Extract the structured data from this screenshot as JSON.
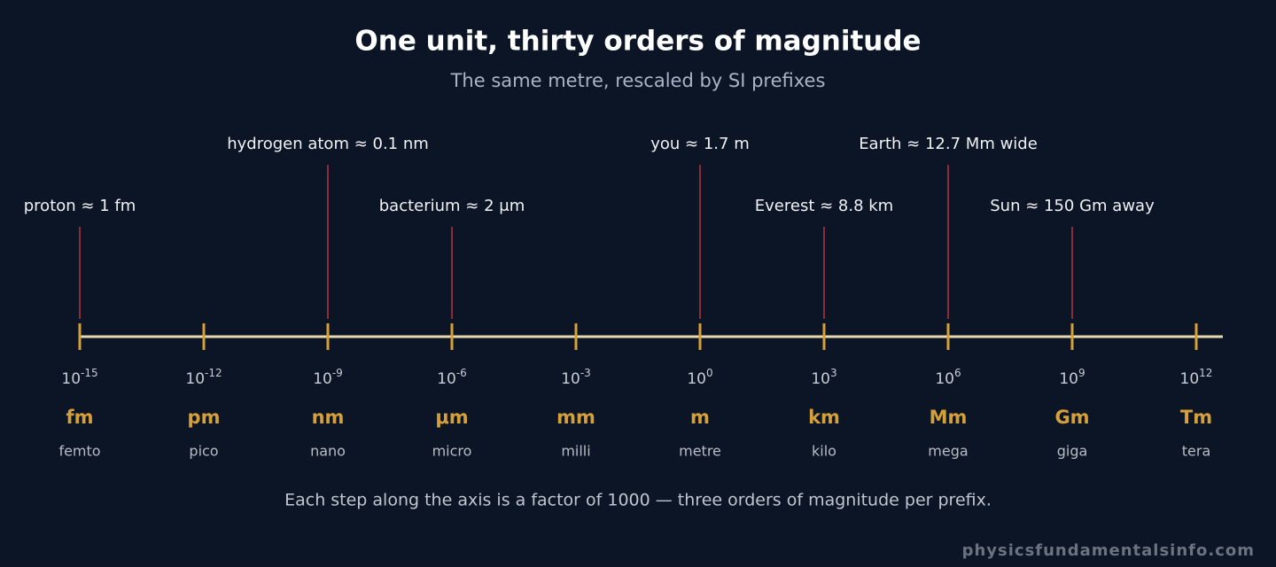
{
  "header": {
    "title": "One unit, thirty orders of magnitude",
    "subtitle": "The same metre, rescaled by SI prefixes"
  },
  "scale": [
    {
      "base": "10",
      "exponent": "-15",
      "symbol": "fm",
      "prefix": "femto"
    },
    {
      "base": "10",
      "exponent": "-12",
      "symbol": "pm",
      "prefix": "pico"
    },
    {
      "base": "10",
      "exponent": "-9",
      "symbol": "nm",
      "prefix": "nano"
    },
    {
      "base": "10",
      "exponent": "-6",
      "symbol": "μm",
      "prefix": "micro"
    },
    {
      "base": "10",
      "exponent": "-3",
      "symbol": "mm",
      "prefix": "milli"
    },
    {
      "base": "10",
      "exponent": "0",
      "symbol": "m",
      "prefix": "metre"
    },
    {
      "base": "10",
      "exponent": "3",
      "symbol": "km",
      "prefix": "kilo"
    },
    {
      "base": "10",
      "exponent": "6",
      "symbol": "Mm",
      "prefix": "mega"
    },
    {
      "base": "10",
      "exponent": "9",
      "symbol": "Gm",
      "prefix": "giga"
    },
    {
      "base": "10",
      "exponent": "12",
      "symbol": "Tm",
      "prefix": "tera"
    }
  ],
  "annotations": [
    {
      "label": "proton ≈ 1 fm"
    },
    {
      "label": "hydrogen atom ≈ 0.1 nm"
    },
    {
      "label": "bacterium ≈ 2 μm"
    },
    {
      "label": "you ≈ 1.7 m"
    },
    {
      "label": "Everest ≈ 8.8 km"
    },
    {
      "label": "Earth ≈ 12.7 Mm wide"
    },
    {
      "label": "Sun ≈ 150 Gm away"
    }
  ],
  "footnote": "Each step along the axis is a factor of 1000 — three orders of magnitude per prefix.",
  "watermark": "physicsfundamentalsinfo.com"
}
